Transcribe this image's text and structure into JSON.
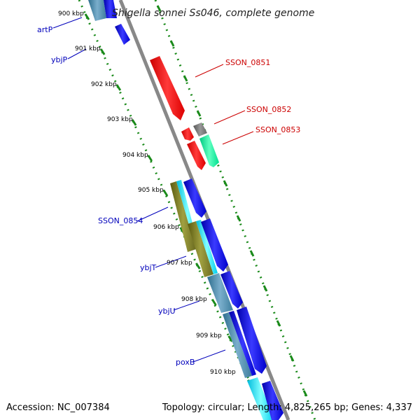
{
  "title": "Shigella sonnei Ss046, complete genome",
  "footer": {
    "accession": "Accession: NC_007384",
    "topology": "Topology: circular; Length: 4,825,265 bp; Genes: 4,337"
  },
  "colors": {
    "backbone": "#888888",
    "tick": "#1a8a1a",
    "forward_label": "#cc0000",
    "reverse_label": "#0000bb",
    "red_gene": "#ff0000",
    "grey_gene": "#6e6e6e",
    "green_gene": "#00ffa0",
    "blue_gene": "#0000ff"
  },
  "kbp_ticks": [
    "900 kbp",
    "901 kbp",
    "902 kbp",
    "903 kbp",
    "904 kbp",
    "905 kbp",
    "906 kbp",
    "907 kbp",
    "908 kbp",
    "909 kbp",
    "910 kbp"
  ],
  "gene_labels": {
    "forward": [
      "SSON_0851",
      "SSON_0852",
      "SSON_0853"
    ],
    "reverse": [
      "artP",
      "ybjP",
      "SSON_0854",
      "ybjT",
      "ybjU",
      "poxB"
    ]
  },
  "features": [
    {
      "name": "blue-top-segment",
      "type": "block",
      "lane": "inner-cds",
      "color": "#0000ff"
    },
    {
      "name": "blue-small-arrow",
      "type": "arrow",
      "lane": "inner",
      "color": "#0000ff"
    },
    {
      "name": "ssn0851-arrow",
      "type": "arrow",
      "lane": "outer",
      "color": "#ff0000"
    },
    {
      "name": "ssn0852-small",
      "type": "arrow",
      "lane": "outer",
      "color": "#ff0000"
    },
    {
      "name": "ssn0852-arrow",
      "type": "arrow",
      "lane": "outer",
      "color": "#ff0000"
    },
    {
      "name": "ssn0853-grey",
      "type": "block",
      "lane": "outer-cds",
      "color": "#6e6e6e"
    },
    {
      "name": "ssn0853-green",
      "type": "arrow",
      "lane": "outer-cds",
      "color": "#00ffa0"
    },
    {
      "name": "ybjP-cds",
      "type": "block",
      "lane": "inner-cds",
      "color": "#4d8b8b"
    },
    {
      "name": "blue-arrow-905",
      "type": "arrow",
      "lane": "inner",
      "color": "#0000ff"
    },
    {
      "name": "blue-arrow-906",
      "type": "arrow",
      "lane": "inner",
      "color": "#0000ff"
    },
    {
      "name": "blue-arrow-908",
      "type": "arrow",
      "lane": "inner",
      "color": "#0000ff"
    },
    {
      "name": "blue-arrow-909",
      "type": "arrow",
      "lane": "inner",
      "color": "#0000ff"
    },
    {
      "name": "blue-arrow-910",
      "type": "arrow",
      "lane": "inner",
      "color": "#0000ff"
    }
  ]
}
